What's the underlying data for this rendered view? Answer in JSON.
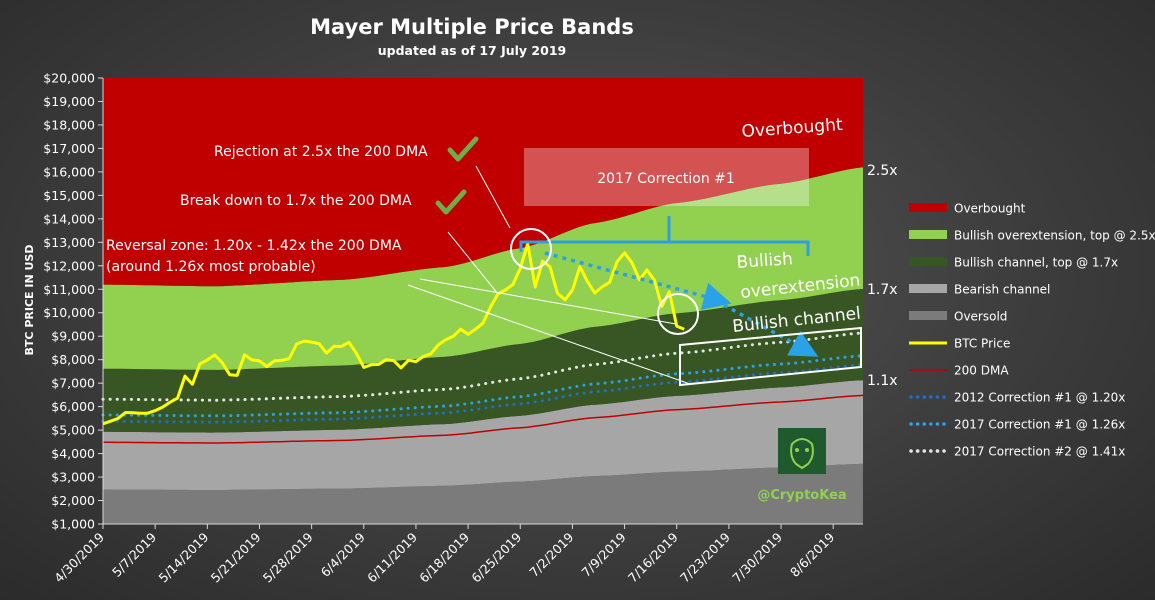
{
  "chart_data": {
    "type": "area",
    "title": "Mayer Multiple Price Bands",
    "subtitle": "updated as of 17 July 2019",
    "ylabel": "BTC PRICE IN USD",
    "xlabel": "",
    "ylim": [
      1000,
      20000
    ],
    "y_ticks": [
      "$1,000",
      "$2,000",
      "$3,000",
      "$4,000",
      "$5,000",
      "$6,000",
      "$7,000",
      "$8,000",
      "$9,000",
      "$10,000",
      "$11,000",
      "$12,000",
      "$13,000",
      "$14,000",
      "$15,000",
      "$16,000",
      "$17,000",
      "$18,000",
      "$19,000",
      "$20,000"
    ],
    "x_ticks": [
      "4/30/2019",
      "5/7/2019",
      "5/14/2019",
      "5/21/2019",
      "5/28/2019",
      "6/4/2019",
      "6/11/2019",
      "6/18/2019",
      "6/25/2019",
      "7/2/2019",
      "7/9/2019",
      "7/16/2019",
      "7/23/2019",
      "7/30/2019",
      "8/6/2019"
    ],
    "x_range": [
      "2019-04-30",
      "2019-08-10"
    ],
    "dma_200": {
      "x": [
        "2019-04-30",
        "2019-05-15",
        "2019-06-01",
        "2019-06-15",
        "2019-06-25",
        "2019-07-05",
        "2019-07-16",
        "2019-07-30",
        "2019-08-10"
      ],
      "values": [
        4480,
        4450,
        4560,
        4780,
        5100,
        5530,
        5870,
        6200,
        6480
      ]
    },
    "bands": [
      {
        "name": "Oversold",
        "color": "#7b7b7b",
        "multiple_bottom": 0,
        "multiple_top": 0.55
      },
      {
        "name": "Bearish channel",
        "color": "#a6a6a6",
        "multiple_bottom": 0.55,
        "multiple_top": 1.1
      },
      {
        "name": "Bullish channel, top @ 1.7x",
        "color": "#375623",
        "multiple_bottom": 1.1,
        "multiple_top": 1.7
      },
      {
        "name": "Bullish overextension, top @ 2.5x",
        "color": "#92d050",
        "multiple_bottom": 1.7,
        "multiple_top": 2.5
      },
      {
        "name": "Overbought",
        "color": "#c00000",
        "multiple_bottom": 2.5,
        "multiple_top": null
      }
    ],
    "series": [
      {
        "name": "BTC Price",
        "color": "#ffff00",
        "x": [
          "2019-04-30",
          "2019-05-01",
          "2019-05-02",
          "2019-05-03",
          "2019-05-04",
          "2019-05-05",
          "2019-05-06",
          "2019-05-07",
          "2019-05-08",
          "2019-05-09",
          "2019-05-10",
          "2019-05-11",
          "2019-05-12",
          "2019-05-13",
          "2019-05-14",
          "2019-05-15",
          "2019-05-16",
          "2019-05-17",
          "2019-05-18",
          "2019-05-19",
          "2019-05-20",
          "2019-05-21",
          "2019-05-22",
          "2019-05-23",
          "2019-05-24",
          "2019-05-25",
          "2019-05-26",
          "2019-05-27",
          "2019-05-28",
          "2019-05-29",
          "2019-05-30",
          "2019-05-31",
          "2019-06-01",
          "2019-06-02",
          "2019-06-03",
          "2019-06-04",
          "2019-06-05",
          "2019-06-06",
          "2019-06-07",
          "2019-06-08",
          "2019-06-09",
          "2019-06-10",
          "2019-06-11",
          "2019-06-12",
          "2019-06-13",
          "2019-06-14",
          "2019-06-15",
          "2019-06-16",
          "2019-06-17",
          "2019-06-18",
          "2019-06-19",
          "2019-06-20",
          "2019-06-21",
          "2019-06-22",
          "2019-06-23",
          "2019-06-24",
          "2019-06-25",
          "2019-06-26",
          "2019-06-27",
          "2019-06-28",
          "2019-06-29",
          "2019-06-30",
          "2019-07-01",
          "2019-07-02",
          "2019-07-03",
          "2019-07-04",
          "2019-07-05",
          "2019-07-06",
          "2019-07-07",
          "2019-07-08",
          "2019-07-09",
          "2019-07-10",
          "2019-07-11",
          "2019-07-12",
          "2019-07-13",
          "2019-07-14",
          "2019-07-15",
          "2019-07-16",
          "2019-07-17"
        ],
        "values": [
          5270,
          5380,
          5490,
          5750,
          5740,
          5720,
          5720,
          5830,
          5980,
          6190,
          6360,
          7300,
          6950,
          7820,
          7990,
          8200,
          7870,
          7360,
          7330,
          8210,
          7990,
          7950,
          7710,
          7950,
          7970,
          8050,
          8670,
          8790,
          8750,
          8680,
          8280,
          8570,
          8560,
          8740,
          8280,
          7670,
          7780,
          7800,
          8000,
          7960,
          7650,
          7980,
          7920,
          8140,
          8250,
          8630,
          8850,
          8990,
          9300,
          9080,
          9300,
          9560,
          10240,
          10800,
          10970,
          11200,
          11890,
          12940,
          11100,
          12200,
          11950,
          10830,
          10550,
          10960,
          11960,
          11340,
          10840,
          11100,
          11300,
          12180,
          12550,
          12130,
          11400,
          11820,
          11390,
          10270,
          10900,
          9430,
          9300
        ]
      },
      {
        "name": "200 DMA",
        "color": "#c00000",
        "multiple": 1.0
      },
      {
        "name": "2012 Correction #1 @ 1.20x",
        "color": "#1f6fc4",
        "multiple": 1.2,
        "dotted": true
      },
      {
        "name": "2017 Correction #1 @ 1.26x",
        "color": "#2aa2e8",
        "multiple": 1.26,
        "dotted": true
      },
      {
        "name": "2017 Correction #2 @ 1.41x",
        "color": "#e6e6e6",
        "multiple": 1.41,
        "dotted": true
      }
    ],
    "band_labels": [
      "Overbought",
      "Bullish overextension",
      "Bullish channel"
    ],
    "multiple_labels": [
      "2.5x",
      "1.7x",
      "1.1x"
    ],
    "annotations": [
      "Rejection at 2.5x the 200 DMA",
      "Break down to 1.7x the 200 DMA",
      "Reversal zone: 1.20x - 1.42x the 200 DMA",
      "(around 1.26x most probable)",
      "2017 Correction #1"
    ],
    "brand": "@CryptoKea",
    "legend_position": "right",
    "grid": false
  }
}
